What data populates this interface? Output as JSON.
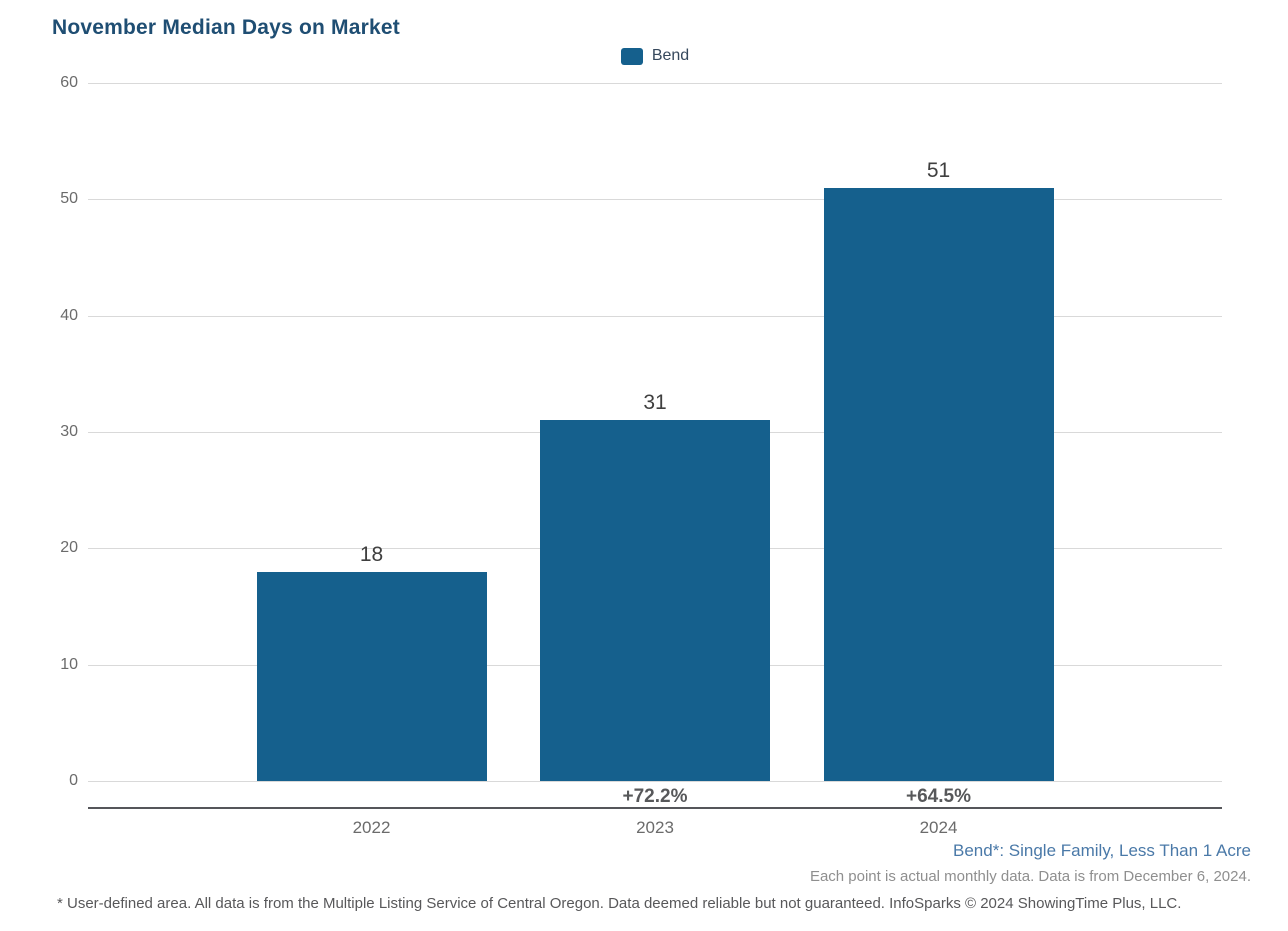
{
  "title": "November Median Days on Market",
  "legend": {
    "label": "Bend",
    "color": "#15608d"
  },
  "chart_data": {
    "type": "bar",
    "title": "November Median Days on Market",
    "series_name": "Bend",
    "categories": [
      "2022",
      "2023",
      "2024"
    ],
    "values": [
      18,
      31,
      51
    ],
    "bar_labels": [
      "18",
      "31",
      "51"
    ],
    "pct_change": [
      "",
      "+72.2%",
      "+64.5%"
    ],
    "xlabel": "",
    "ylabel": "",
    "ylim": [
      0,
      60
    ],
    "yticks": [
      0,
      10,
      20,
      30,
      40,
      50,
      60
    ],
    "grid": true,
    "legend_position": "top-center",
    "bar_color": "#15608d"
  },
  "annotations": {
    "series_definition": "Bend*: Single Family, Less Than 1 Acre",
    "data_note": "Each point is actual monthly data. Data is from December 6, 2024."
  },
  "footnote": "* User-defined area. All data is from the Multiple Listing Service of Central Oregon. Data deemed reliable but not guaranteed. InfoSparks © 2024 ShowingTime Plus, LLC."
}
